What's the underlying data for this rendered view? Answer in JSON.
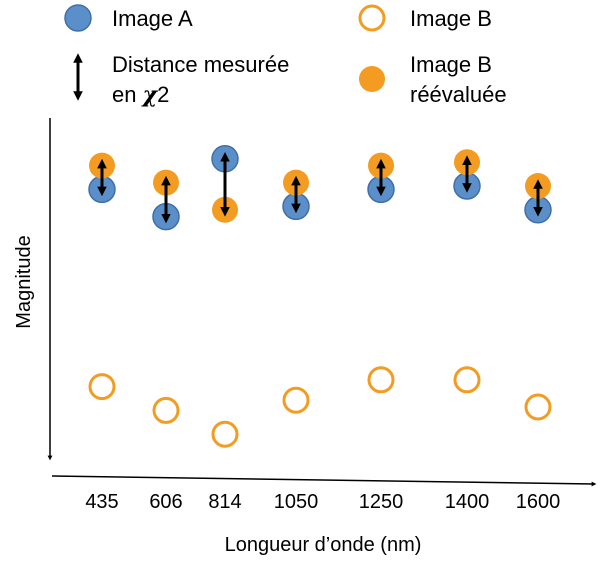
{
  "chart_data": {
    "type": "scatter",
    "xlabel": "Longueur d’onde  (nm)",
    "ylabel": "Magnitude",
    "categories": [
      "435",
      "606",
      "814",
      "1050",
      "1250",
      "1400",
      "1600"
    ],
    "ylim": [
      0,
      100
    ],
    "y_axis_inverted": true,
    "grid": false,
    "legend_position": "top",
    "legend": [
      {
        "key": "image_a",
        "label": "Image A"
      },
      {
        "key": "image_b",
        "label": "Image B"
      },
      {
        "key": "distance",
        "label_line1": "Distance mesurée",
        "label_line2_prefix": "en ",
        "label_line2_chi": "χ",
        "label_line2_suffix": "2"
      },
      {
        "key": "image_b_reeval",
        "label_line1": "Image B",
        "label_line2": "réévaluée"
      }
    ],
    "series": [
      {
        "name": "Image A",
        "marker": "filled-circle",
        "color": "#5b8fc9",
        "edge": "#3f6fa8",
        "values": [
          79,
          71,
          88,
          74,
          79,
          80,
          73
        ]
      },
      {
        "name": "Image B",
        "marker": "open-circle",
        "color": "#f39c21",
        "values": [
          21,
          14,
          7,
          17,
          23,
          23,
          15
        ]
      },
      {
        "name": "Image B réévaluée",
        "marker": "filled-circle",
        "color": "#f39c21",
        "values": [
          86,
          81,
          73,
          81,
          86,
          87,
          80
        ]
      }
    ],
    "distance_arrows": [
      {
        "from": "Image A",
        "to": "Image B réévaluée"
      }
    ]
  }
}
